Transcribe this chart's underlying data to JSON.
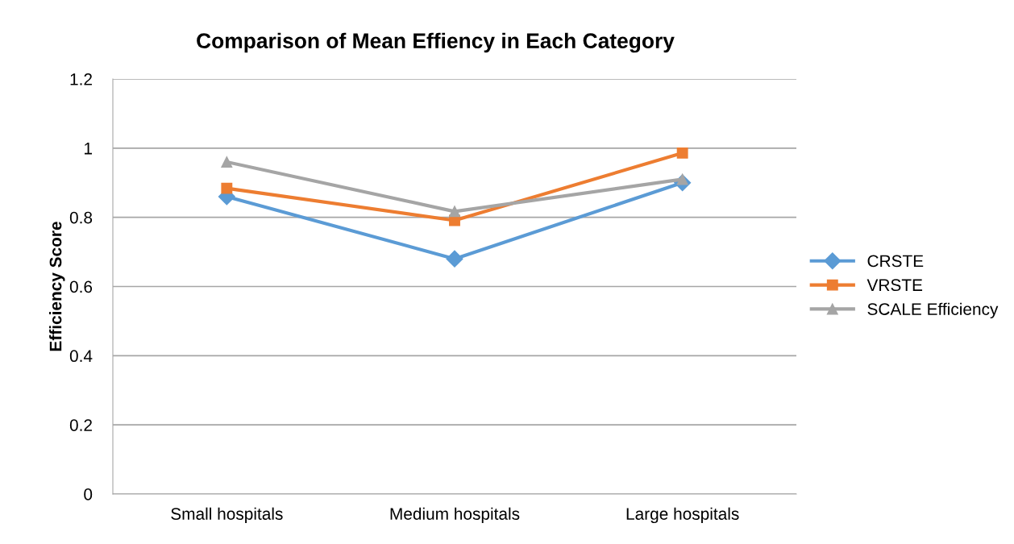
{
  "chart_data": {
    "type": "line",
    "title": "Comparison of Mean Effiency in Each Category",
    "ylabel": "Efficiency Score",
    "categories": [
      "Small hospitals",
      "Medium hospitals",
      "Large hospitals"
    ],
    "series": [
      {
        "name": "CRSTE",
        "color": "#5b9bd5",
        "marker": "diamond",
        "values": [
          0.86,
          0.68,
          0.9
        ]
      },
      {
        "name": "VRSTE",
        "color": "#ed7d31",
        "marker": "square",
        "values": [
          0.884,
          0.791,
          0.986
        ]
      },
      {
        "name": "SCALE Efficiency",
        "color": "#a5a5a5",
        "marker": "triangle",
        "values": [
          0.96,
          0.817,
          0.91
        ]
      }
    ],
    "ylim": [
      0,
      1.2
    ],
    "yticks": [
      0,
      0.2,
      0.4,
      0.6,
      0.8,
      1,
      1.2
    ],
    "grid": "y",
    "legend": "right",
    "line_style": "solid"
  }
}
